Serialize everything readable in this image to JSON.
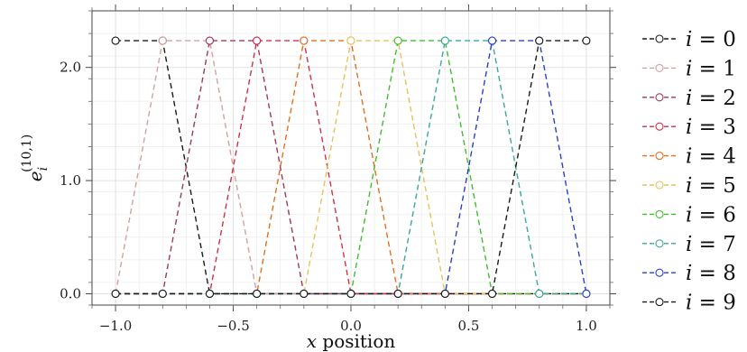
{
  "chart_data": {
    "type": "line",
    "title": "",
    "xlabel": "x position",
    "ylabel": "e_i^(10,1)",
    "ylabel_base": "e",
    "ylabel_sub": "i",
    "ylabel_sup": "(10,1)",
    "xlim": [
      -1.1,
      1.1
    ],
    "ylim": [
      -0.1,
      2.5
    ],
    "x_ticks": [
      -1.0,
      -0.5,
      0.0,
      0.5,
      1.0
    ],
    "x_tick_labels": [
      "−1.0",
      "−0.5",
      "0.0",
      "0.5",
      "1.0"
    ],
    "y_ticks": [
      0.0,
      1.0,
      2.0
    ],
    "y_tick_labels": [
      "0.0",
      "1.0",
      "2.0"
    ],
    "grid": true,
    "legend_placement": "right, outside",
    "x": [
      -1.0,
      -0.8,
      -0.6,
      -0.4,
      -0.2,
      0.0,
      0.2,
      0.4,
      0.6,
      0.8,
      1.0
    ],
    "series": [
      {
        "name": "i = 0",
        "legend_var": "i",
        "legend_eq": " = 0",
        "color": "#1a1a1a",
        "values": [
          2.236,
          2.236,
          0,
          0,
          0,
          0,
          0,
          0,
          0,
          0,
          0
        ]
      },
      {
        "name": "i = 1",
        "legend_var": "i",
        "legend_eq": " = 1",
        "color": "#d4a0a0",
        "values": [
          0,
          2.236,
          2.236,
          0,
          0,
          0,
          0,
          0,
          0,
          0,
          0
        ]
      },
      {
        "name": "i = 2",
        "legend_var": "i",
        "legend_eq": " = 2",
        "color": "#9e3a5a",
        "values": [
          0,
          0,
          2.236,
          2.236,
          0,
          0,
          0,
          0,
          0,
          0,
          0
        ]
      },
      {
        "name": "i = 3",
        "legend_var": "i",
        "legend_eq": " = 3",
        "color": "#d1304a",
        "values": [
          0,
          0,
          0,
          2.236,
          2.236,
          0,
          0,
          0,
          0,
          0,
          0
        ]
      },
      {
        "name": "i = 4",
        "legend_var": "i",
        "legend_eq": " = 4",
        "color": "#e0701f",
        "values": [
          0,
          0,
          0,
          0,
          2.236,
          2.236,
          0,
          0,
          0,
          0,
          0
        ]
      },
      {
        "name": "i = 5",
        "legend_var": "i",
        "legend_eq": " = 5",
        "color": "#e6c25a",
        "values": [
          0,
          0,
          0,
          0,
          0,
          2.236,
          2.236,
          0,
          0,
          0,
          0
        ]
      },
      {
        "name": "i = 6",
        "legend_var": "i",
        "legend_eq": " = 6",
        "color": "#3fbf2f",
        "values": [
          0,
          0,
          0,
          0,
          0,
          0,
          2.236,
          2.236,
          0,
          0,
          0
        ]
      },
      {
        "name": "i = 7",
        "legend_var": "i",
        "legend_eq": " = 7",
        "color": "#3aa89a",
        "values": [
          0,
          0,
          0,
          0,
          0,
          0,
          0,
          2.236,
          2.236,
          0,
          0
        ]
      },
      {
        "name": "i = 8",
        "legend_var": "i",
        "legend_eq": " = 8",
        "color": "#2a3fc9",
        "values": [
          0,
          0,
          0,
          0,
          0,
          0,
          0,
          0,
          2.236,
          2.236,
          0
        ]
      },
      {
        "name": "i = 9",
        "legend_var": "i",
        "legend_eq": " = 9",
        "color": "#1a1a1a",
        "values": [
          0,
          0,
          0,
          0,
          0,
          0,
          0,
          0,
          0,
          2.236,
          2.236
        ]
      }
    ]
  }
}
